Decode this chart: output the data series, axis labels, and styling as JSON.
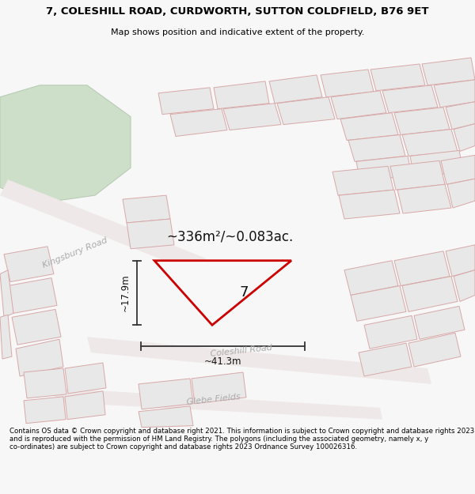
{
  "title_line1": "7, COLESHILL ROAD, CURDWORTH, SUTTON COLDFIELD, B76 9ET",
  "title_line2": "Map shows position and indicative extent of the property.",
  "footer_text": "Contains OS data © Crown copyright and database right 2021. This information is subject to Crown copyright and database rights 2023 and is reproduced with the permission of HM Land Registry. The polygons (including the associated geometry, namely x, y co-ordinates) are subject to Crown copyright and database rights 2023 Ordnance Survey 100026316.",
  "area_label": "~336m²/~0.083ac.",
  "plot_number": "7",
  "dim_width": "~41.3m",
  "dim_height": "~17.9m",
  "bg_color": "#f7f7f7",
  "map_bg": "#f8f8f8",
  "building_fill": "#e8e8e8",
  "building_edge": "#d8a8a8",
  "road_fill": "#f0e8e8",
  "highlight_stroke": "#cc0000",
  "green_fill": "#cddfc8",
  "green_edge": "#b8ccb4",
  "label_color": "#aaaaaa",
  "dim_color": "#333333",
  "text_color": "#111111"
}
